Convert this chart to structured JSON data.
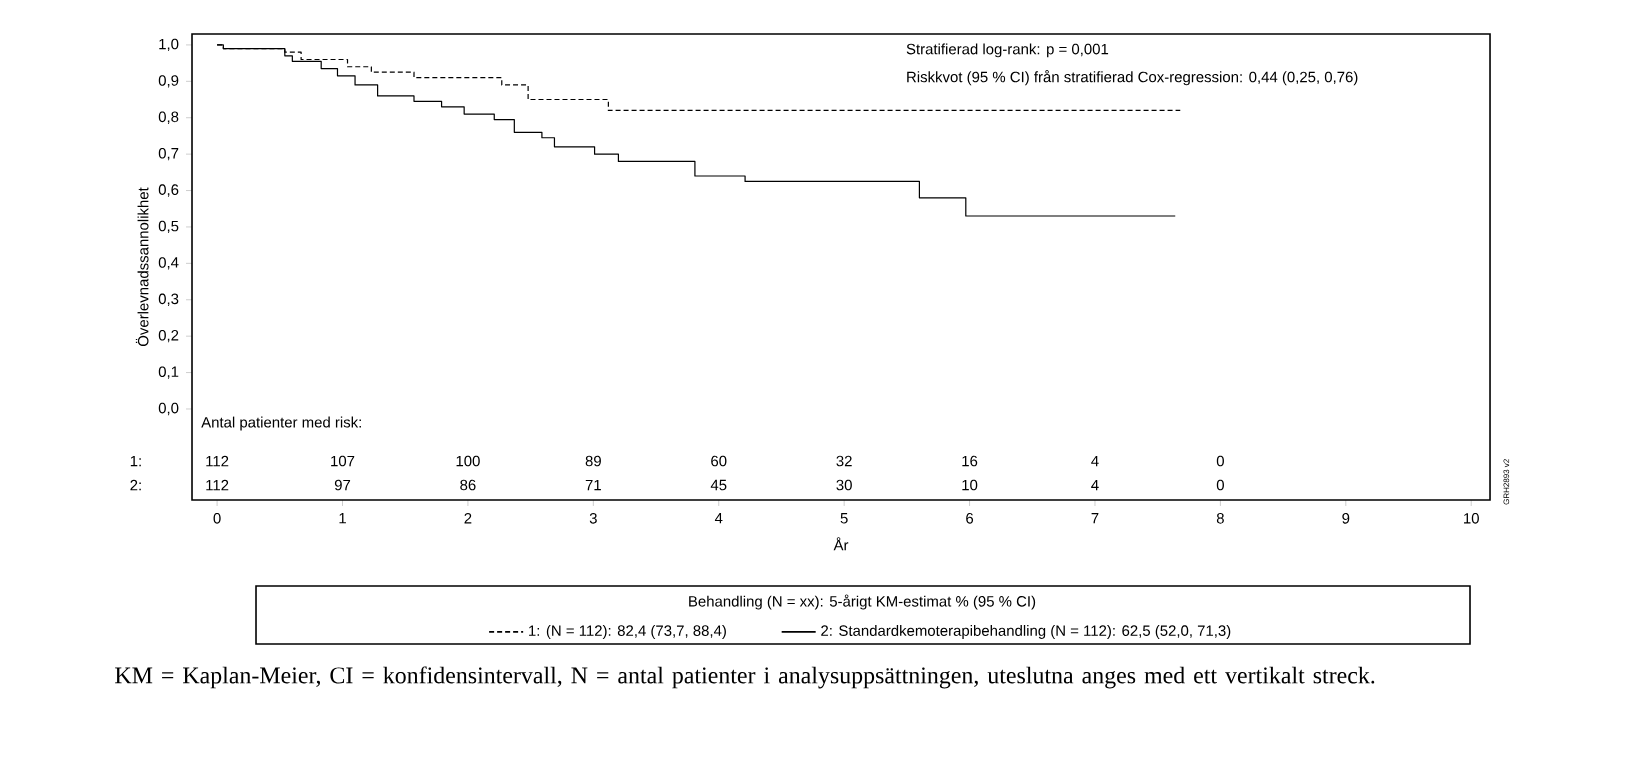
{
  "chart_data": {
    "type": "step",
    "xlabel": "År",
    "ylabel": "Överlevnadssannolikhet",
    "legend_title": "Behandling (N = xx): 5-årigt KM-estimat % (95 % CI)",
    "legend": "bottom",
    "xlim": [
      -0.2,
      10.15
    ],
    "ylim": [
      -0.25,
      1.03
    ],
    "xticks": [
      0,
      1,
      2,
      3,
      4,
      5,
      6,
      7,
      8,
      9,
      10
    ],
    "yticks": [
      {
        "value": 0,
        "label": "0,0"
      },
      {
        "value": 0.1,
        "label": "0,1"
      },
      {
        "value": 0.2,
        "label": "0,2"
      },
      {
        "value": 0.3,
        "label": "0,3"
      },
      {
        "value": 0.4,
        "label": "0,4"
      },
      {
        "value": 0.5,
        "label": "0,5"
      },
      {
        "value": 0.6,
        "label": "0,6"
      },
      {
        "value": 0.7,
        "label": "0,7"
      },
      {
        "value": 0.8,
        "label": "0,8"
      },
      {
        "value": 0.9,
        "label": "0,9"
      },
      {
        "value": 1.0,
        "label": "1,0"
      }
    ],
    "series": [
      {
        "name": "1: (N = 112): 82,4 (73,7, 88,4)",
        "color": "#000000",
        "line_style": "dashed",
        "x": [
          0,
          0.05,
          0.54,
          0.67,
          1.04,
          1.23,
          1.57,
          2.27,
          2.48,
          3.12,
          7.68
        ],
        "values": [
          1.0,
          0.99,
          0.98,
          0.96,
          0.94,
          0.925,
          0.91,
          0.89,
          0.85,
          0.82,
          0.82
        ]
      },
      {
        "name": "2: Standardkemoterapibehandling (N = 112): 62,5 (52,0, 71,3)",
        "color": "#000000",
        "line_style": "solid",
        "x": [
          0,
          0.05,
          0.54,
          0.6,
          0.83,
          0.96,
          1.1,
          1.28,
          1.57,
          1.79,
          1.97,
          2.21,
          2.37,
          2.59,
          2.69,
          3.01,
          3.2,
          3.81,
          4.21,
          5.6,
          5.97,
          7.64
        ],
        "values": [
          1.0,
          0.99,
          0.97,
          0.955,
          0.935,
          0.915,
          0.89,
          0.86,
          0.845,
          0.83,
          0.81,
          0.795,
          0.76,
          0.745,
          0.72,
          0.7,
          0.68,
          0.64,
          0.625,
          0.58,
          0.53,
          0.53
        ]
      }
    ],
    "annotations": [
      "Stratifierad log-rank: p = 0,001",
      "Riskkvot (95 % CI) från stratifierad Cox-regression: 0,44 (0,25, 0,76)",
      "Antal patienter med risk:",
      "1:",
      "2:",
      "112",
      "107",
      "100",
      "89",
      "60",
      "32",
      "16",
      "4",
      "0",
      "112",
      "97",
      "86",
      "71",
      "45",
      "30",
      "10",
      "4",
      "0",
      "GRH2893 v2",
      "KM = Kaplan-Meier, CI = konfidensintervall, N = antal patienter i analysuppsättningen, uteslutna anges med ett vertikalt streck."
    ]
  }
}
